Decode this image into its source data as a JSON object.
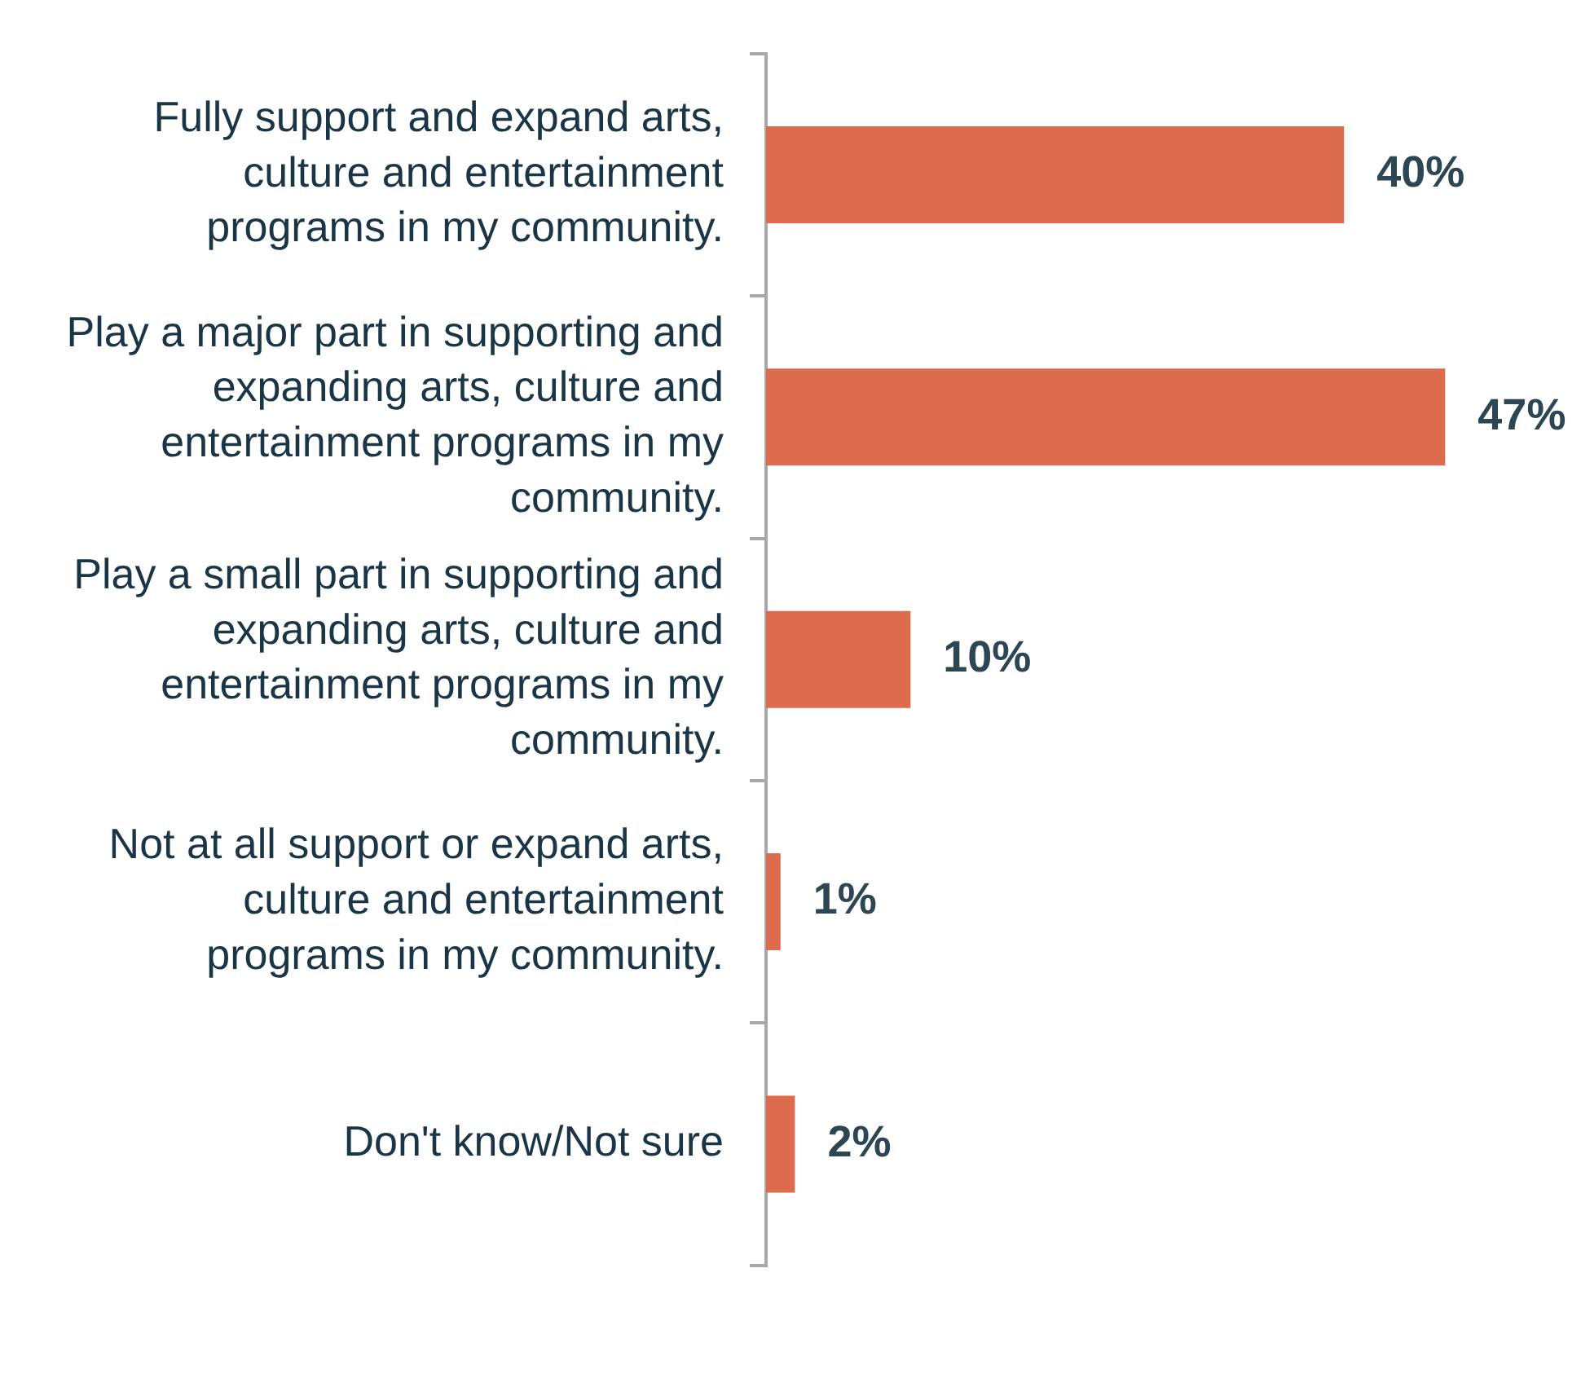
{
  "chart_data": {
    "type": "bar",
    "orientation": "horizontal",
    "categories": [
      "Fully support and expand arts, culture and entertainment programs in my community.",
      "Play a major part in supporting and expanding arts, culture and entertainment programs in my community.",
      "Play a small part in supporting and expanding arts, culture and entertainment programs in my community.",
      "Not at all support or expand arts, culture and entertainment programs in my community.",
      "Don't know/Not sure"
    ],
    "values": [
      40,
      47,
      10,
      1,
      2
    ],
    "value_labels": [
      "40%",
      "47%",
      "10%",
      "1%",
      "2%"
    ],
    "color": "#dd6b4d",
    "grid": false,
    "legend": false,
    "tick_labels": "y"
  }
}
